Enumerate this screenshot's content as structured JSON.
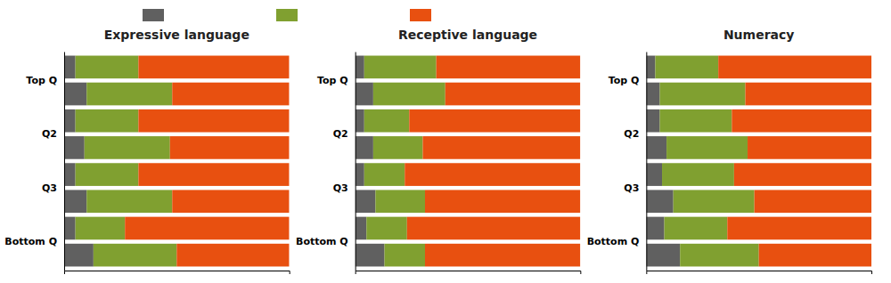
{
  "chart_data": [
    {
      "type": "bar",
      "orientation": "horizontal",
      "stacked": true,
      "title": "Expressive language",
      "categories": [
        "Top Q",
        null,
        "Q2",
        null,
        "Q3",
        null,
        "Bottom Q",
        null
      ],
      "xlim": [
        0,
        1
      ],
      "tick_labels": "y",
      "legend": "upper left",
      "series": [
        {
          "color": "#606060",
          "values": [
            0.05,
            0.1,
            0.05,
            0.09,
            0.05,
            0.1,
            0.05,
            0.13
          ]
        },
        {
          "color": "#80a030",
          "values": [
            0.28,
            0.38,
            0.28,
            0.38,
            0.28,
            0.38,
            0.22,
            0.37
          ]
        },
        {
          "color": "#e85010",
          "values": [
            0.67,
            0.52,
            0.67,
            0.53,
            0.67,
            0.52,
            0.73,
            0.5
          ]
        }
      ]
    },
    {
      "type": "bar",
      "orientation": "horizontal",
      "stacked": true,
      "title": "Receptive language",
      "categories": [
        "Top Q",
        null,
        "Q2",
        null,
        "Q3",
        null,
        "Bottom Q",
        null
      ],
      "xlim": [
        0,
        1
      ],
      "tick_labels": "y",
      "series": [
        {
          "color": "#606060",
          "values": [
            0.04,
            0.08,
            0.04,
            0.08,
            0.04,
            0.09,
            0.05,
            0.13
          ]
        },
        {
          "color": "#80a030",
          "values": [
            0.32,
            0.32,
            0.2,
            0.22,
            0.18,
            0.22,
            0.18,
            0.18
          ]
        },
        {
          "color": "#e85010",
          "values": [
            0.64,
            0.6,
            0.76,
            0.7,
            0.78,
            0.69,
            0.77,
            0.69
          ]
        }
      ]
    },
    {
      "type": "bar",
      "orientation": "horizontal",
      "stacked": true,
      "title": "Numeracy",
      "categories": [
        "Top Q",
        null,
        "Q2",
        null,
        "Q3",
        null,
        "Bottom Q",
        null
      ],
      "xlim": [
        0,
        1
      ],
      "tick_labels": "y",
      "series": [
        {
          "color": "#606060",
          "values": [
            0.04,
            0.06,
            0.06,
            0.09,
            0.07,
            0.12,
            0.08,
            0.15
          ]
        },
        {
          "color": "#80a030",
          "values": [
            0.28,
            0.38,
            0.32,
            0.36,
            0.32,
            0.36,
            0.28,
            0.35
          ]
        },
        {
          "color": "#e85010",
          "values": [
            0.68,
            0.56,
            0.62,
            0.55,
            0.61,
            0.52,
            0.64,
            0.5
          ]
        }
      ]
    }
  ]
}
